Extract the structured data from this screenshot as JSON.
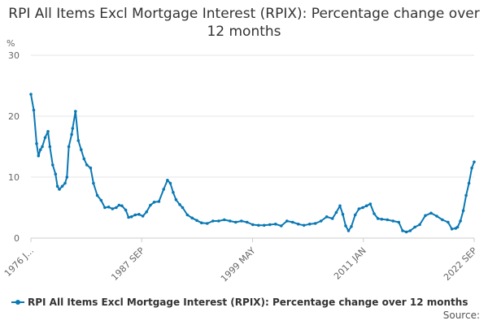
{
  "chart_data": {
    "type": "line",
    "title": "RPI All Items Excl Mortgage Interest (RPIX): Percentage change over 12 months",
    "ylabel": "%",
    "xlabel": "",
    "ylim": [
      0,
      30
    ],
    "yticks": [
      "0",
      "10",
      "20",
      "30"
    ],
    "xtick_labels": [
      "1976 J...",
      "1987 SEP",
      "1999 MAY",
      "2011 JAN",
      "2022 SEP"
    ],
    "grid": true,
    "legend_position": "bottom",
    "source_label": "Source:",
    "series": [
      {
        "name": "RPI All Items Excl Mortgage Interest (RPIX): Percentage change over 12 months",
        "color": "#0a78b4",
        "x": [
          1976.0,
          1976.3,
          1976.6,
          1976.8,
          1977.0,
          1977.2,
          1977.5,
          1977.8,
          1978.0,
          1978.3,
          1978.6,
          1978.8,
          1979.0,
          1979.3,
          1979.6,
          1979.8,
          1980.0,
          1980.3,
          1980.4,
          1980.7,
          1981.0,
          1981.3,
          1981.6,
          1981.9,
          1982.3,
          1982.6,
          1983.0,
          1983.4,
          1983.8,
          1984.2,
          1984.6,
          1985.0,
          1985.3,
          1985.6,
          1986.0,
          1986.3,
          1986.6,
          1987.0,
          1987.4,
          1987.8,
          1988.2,
          1988.6,
          1989.0,
          1989.5,
          1990.0,
          1990.4,
          1990.7,
          1991.0,
          1991.3,
          1991.7,
          1992.0,
          1992.5,
          1993.0,
          1993.5,
          1994.0,
          1994.6,
          1995.2,
          1995.8,
          1996.4,
          1997.0,
          1997.6,
          1998.2,
          1998.8,
          1999.4,
          2000.0,
          2000.6,
          2001.2,
          2001.8,
          2002.4,
          2003.0,
          2003.6,
          2004.2,
          2004.8,
          2005.4,
          2006.0,
          2006.6,
          2007.2,
          2007.8,
          2008.2,
          2008.6,
          2008.9,
          2009.2,
          2009.5,
          2009.8,
          2010.2,
          2010.6,
          2011.0,
          2011.4,
          2011.8,
          2012.2,
          2012.6,
          2013.0,
          2013.6,
          2014.2,
          2014.8,
          2015.2,
          2015.6,
          2016.0,
          2016.5,
          2017.0,
          2017.6,
          2018.2,
          2018.8,
          2019.4,
          2020.0,
          2020.4,
          2020.8,
          2021.0,
          2021.3,
          2021.6,
          2021.9,
          2022.2,
          2022.5,
          2022.75
        ],
        "values": [
          23.6,
          21.0,
          15.5,
          13.5,
          14.5,
          15.0,
          16.5,
          17.5,
          15.0,
          12.0,
          10.5,
          8.5,
          8.0,
          8.5,
          9.0,
          10.0,
          15.0,
          17.0,
          18.0,
          20.8,
          16.0,
          14.5,
          13.0,
          12.0,
          11.5,
          9.0,
          7.0,
          6.2,
          5.0,
          5.1,
          4.8,
          5.0,
          5.4,
          5.3,
          4.6,
          3.4,
          3.5,
          3.8,
          3.9,
          3.6,
          4.3,
          5.4,
          5.9,
          6.0,
          8.0,
          9.5,
          9.0,
          7.5,
          6.3,
          5.5,
          5.0,
          3.8,
          3.3,
          2.9,
          2.5,
          2.4,
          2.8,
          2.8,
          3.0,
          2.8,
          2.6,
          2.8,
          2.6,
          2.2,
          2.1,
          2.1,
          2.2,
          2.3,
          2.0,
          2.8,
          2.6,
          2.3,
          2.1,
          2.3,
          2.4,
          2.8,
          3.5,
          3.2,
          4.2,
          5.3,
          3.9,
          2.0,
          1.2,
          1.9,
          3.8,
          4.8,
          5.0,
          5.3,
          5.6,
          4.0,
          3.2,
          3.1,
          3.0,
          2.8,
          2.6,
          1.2,
          1.0,
          1.2,
          1.8,
          2.2,
          3.7,
          4.1,
          3.6,
          3.0,
          2.6,
          1.5,
          1.6,
          1.8,
          2.8,
          4.5,
          7.0,
          9.0,
          11.5,
          12.5
        ]
      }
    ]
  }
}
